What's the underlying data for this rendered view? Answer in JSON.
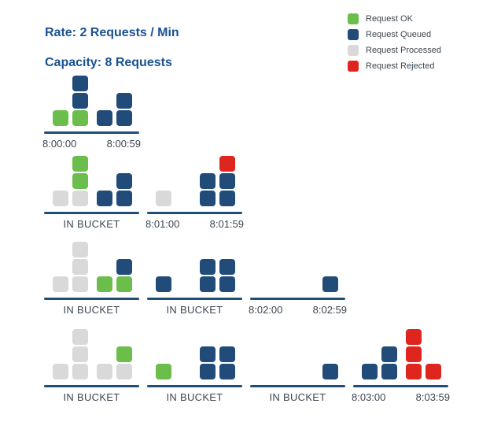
{
  "title": {
    "line1": "Rate: 2 Requests / Min",
    "line2": "Capacity: 8 Requests"
  },
  "legend": {
    "items": [
      {
        "key": "ok",
        "label": "Request OK"
      },
      {
        "key": "queued",
        "label": "Request Queued"
      },
      {
        "key": "processed",
        "label": "Request Processed"
      },
      {
        "key": "rejected",
        "label": "Request Rejected"
      }
    ]
  },
  "colors": {
    "ok": "#6CBE4C",
    "queued": "#214B78",
    "processed": "#D9D9D9",
    "rejected": "#DE261E",
    "baseline": "#1F4E79",
    "title": "#1A5291",
    "label": "#3C4650"
  },
  "bucket_label": "IN BUCKET",
  "rows": [
    {
      "groups": [
        {
          "slot": 0,
          "label_type": "time",
          "label_start": "8:00:00",
          "label_end": "8:00:59",
          "columns": [
            [
              "ok"
            ],
            [
              "ok",
              "queued",
              "queued"
            ],
            [
              "queued"
            ],
            [
              "queued",
              "queued"
            ]
          ]
        }
      ]
    },
    {
      "groups": [
        {
          "slot": 0,
          "label_type": "bucket",
          "columns": [
            [
              "processed"
            ],
            [
              "processed",
              "ok",
              "ok"
            ],
            [
              "queued"
            ],
            [
              "queued",
              "queued"
            ]
          ]
        },
        {
          "slot": 1,
          "label_type": "time",
          "label_start": "8:01:00",
          "label_end": "8:01:59",
          "columns": [
            [
              "processed"
            ],
            [],
            [
              "queued",
              "queued"
            ],
            [
              "queued",
              "queued",
              "rejected"
            ]
          ]
        }
      ]
    },
    {
      "groups": [
        {
          "slot": 0,
          "label_type": "bucket",
          "columns": [
            [
              "processed"
            ],
            [
              "processed",
              "processed",
              "processed"
            ],
            [
              "ok"
            ],
            [
              "ok",
              "queued"
            ]
          ]
        },
        {
          "slot": 1,
          "label_type": "bucket",
          "columns": [
            [
              "queued"
            ],
            [],
            [
              "queued",
              "queued"
            ],
            [
              "queued",
              "queued"
            ]
          ]
        },
        {
          "slot": 2,
          "label_type": "time",
          "label_start": "8:02:00",
          "label_end": "8:02:59",
          "columns": [
            [],
            [],
            [],
            [
              "queued"
            ]
          ]
        }
      ]
    },
    {
      "groups": [
        {
          "slot": 0,
          "label_type": "bucket",
          "columns": [
            [
              "processed"
            ],
            [
              "processed",
              "processed",
              "processed"
            ],
            [
              "processed"
            ],
            [
              "processed",
              "ok"
            ]
          ]
        },
        {
          "slot": 1,
          "label_type": "bucket",
          "columns": [
            [
              "ok"
            ],
            [],
            [
              "queued",
              "queued"
            ],
            [
              "queued",
              "queued"
            ]
          ]
        },
        {
          "slot": 2,
          "label_type": "bucket",
          "columns": [
            [],
            [],
            [],
            [
              "queued"
            ]
          ]
        },
        {
          "slot": 3,
          "label_type": "time",
          "label_start": "8:03:00",
          "label_end": "8:03:59",
          "columns": [
            [
              "queued"
            ],
            [
              "queued",
              "queued"
            ],
            [
              "rejected",
              "rejected",
              "rejected"
            ],
            [
              "rejected"
            ]
          ]
        }
      ]
    }
  ]
}
